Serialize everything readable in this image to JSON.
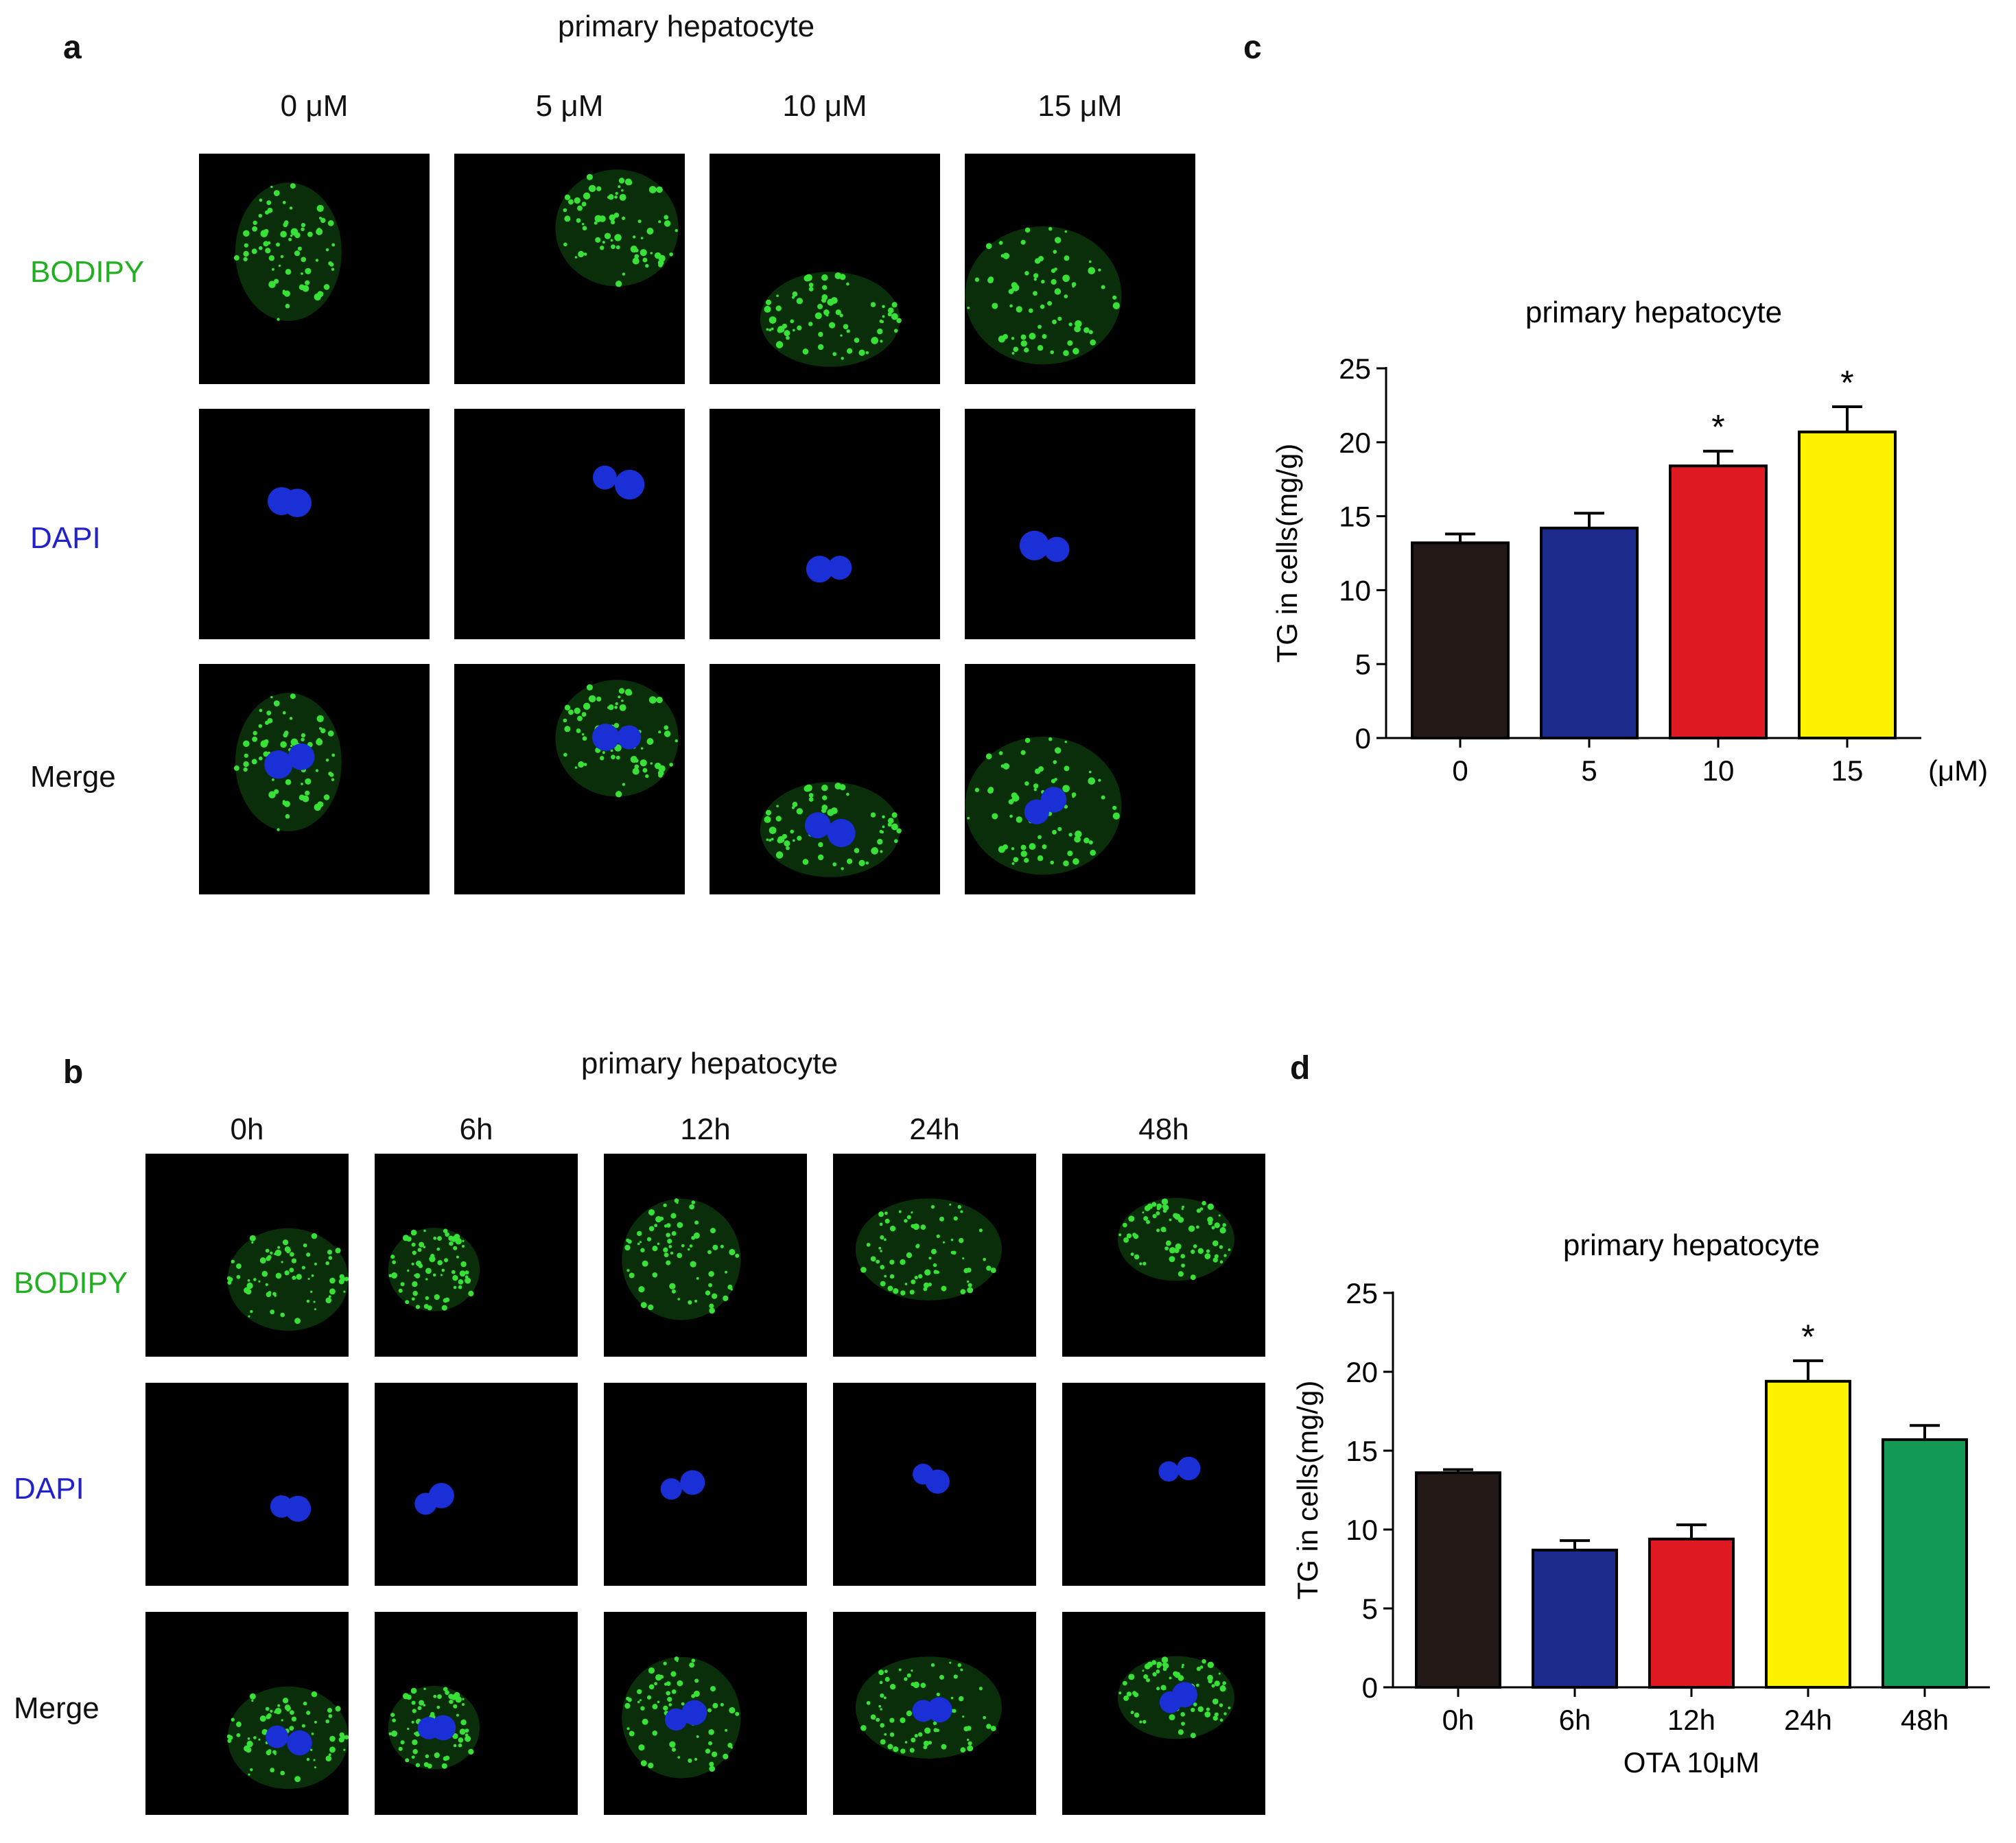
{
  "panels": {
    "a": {
      "letter": "a",
      "title": "primary hepatocyte",
      "columns": [
        "0 μM",
        "5 μM",
        "10 μM",
        "15 μM"
      ],
      "rows": [
        {
          "label": "BODIPY",
          "color": "#22b022"
        },
        {
          "label": "DAPI",
          "color": "#2222cc"
        },
        {
          "label": "Merge",
          "color": "#111111"
        }
      ]
    },
    "b": {
      "letter": "b",
      "title": "primary hepatocyte",
      "columns": [
        "0h",
        "6h",
        "12h",
        "24h",
        "48h"
      ],
      "rows": [
        {
          "label": "BODIPY",
          "color": "#22b022"
        },
        {
          "label": "DAPI",
          "color": "#2222cc"
        },
        {
          "label": "Merge",
          "color": "#111111"
        }
      ]
    },
    "c": {
      "letter": "c"
    },
    "d": {
      "letter": "d"
    }
  },
  "chart_data": [
    {
      "type": "bar",
      "title": "primary hepatocyte",
      "ylabel": "TG in cells(mg/g)",
      "xlabel": "",
      "x_unit": "(μM)",
      "categories": [
        "0",
        "5",
        "10",
        "15"
      ],
      "values": [
        13.2,
        14.2,
        18.4,
        20.7
      ],
      "errors": [
        0.6,
        1.0,
        1.0,
        1.7
      ],
      "colors": [
        "#221816",
        "#1c2a8c",
        "#e01a22",
        "#fff200"
      ],
      "significance": [
        "",
        "",
        "*",
        "*"
      ],
      "ylim": [
        0,
        25
      ],
      "yticks": [
        0,
        5,
        10,
        15,
        20,
        25
      ],
      "grid": false,
      "legend": "none"
    },
    {
      "type": "bar",
      "title": "primary hepatocyte",
      "ylabel": "TG in cells(mg/g)",
      "xlabel": "OTA 10μM",
      "categories": [
        "0h",
        "6h",
        "12h",
        "24h",
        "48h"
      ],
      "values": [
        13.6,
        8.7,
        9.4,
        19.4,
        15.7
      ],
      "errors": [
        0.2,
        0.6,
        0.9,
        1.3,
        0.9
      ],
      "colors": [
        "#221816",
        "#1c2a8c",
        "#e01a22",
        "#fff200",
        "#119955"
      ],
      "significance": [
        "",
        "",
        "",
        "*",
        ""
      ],
      "ylim": [
        0,
        25
      ],
      "yticks": [
        0,
        5,
        10,
        15,
        20,
        25
      ],
      "grid": false,
      "legend": "none"
    }
  ]
}
